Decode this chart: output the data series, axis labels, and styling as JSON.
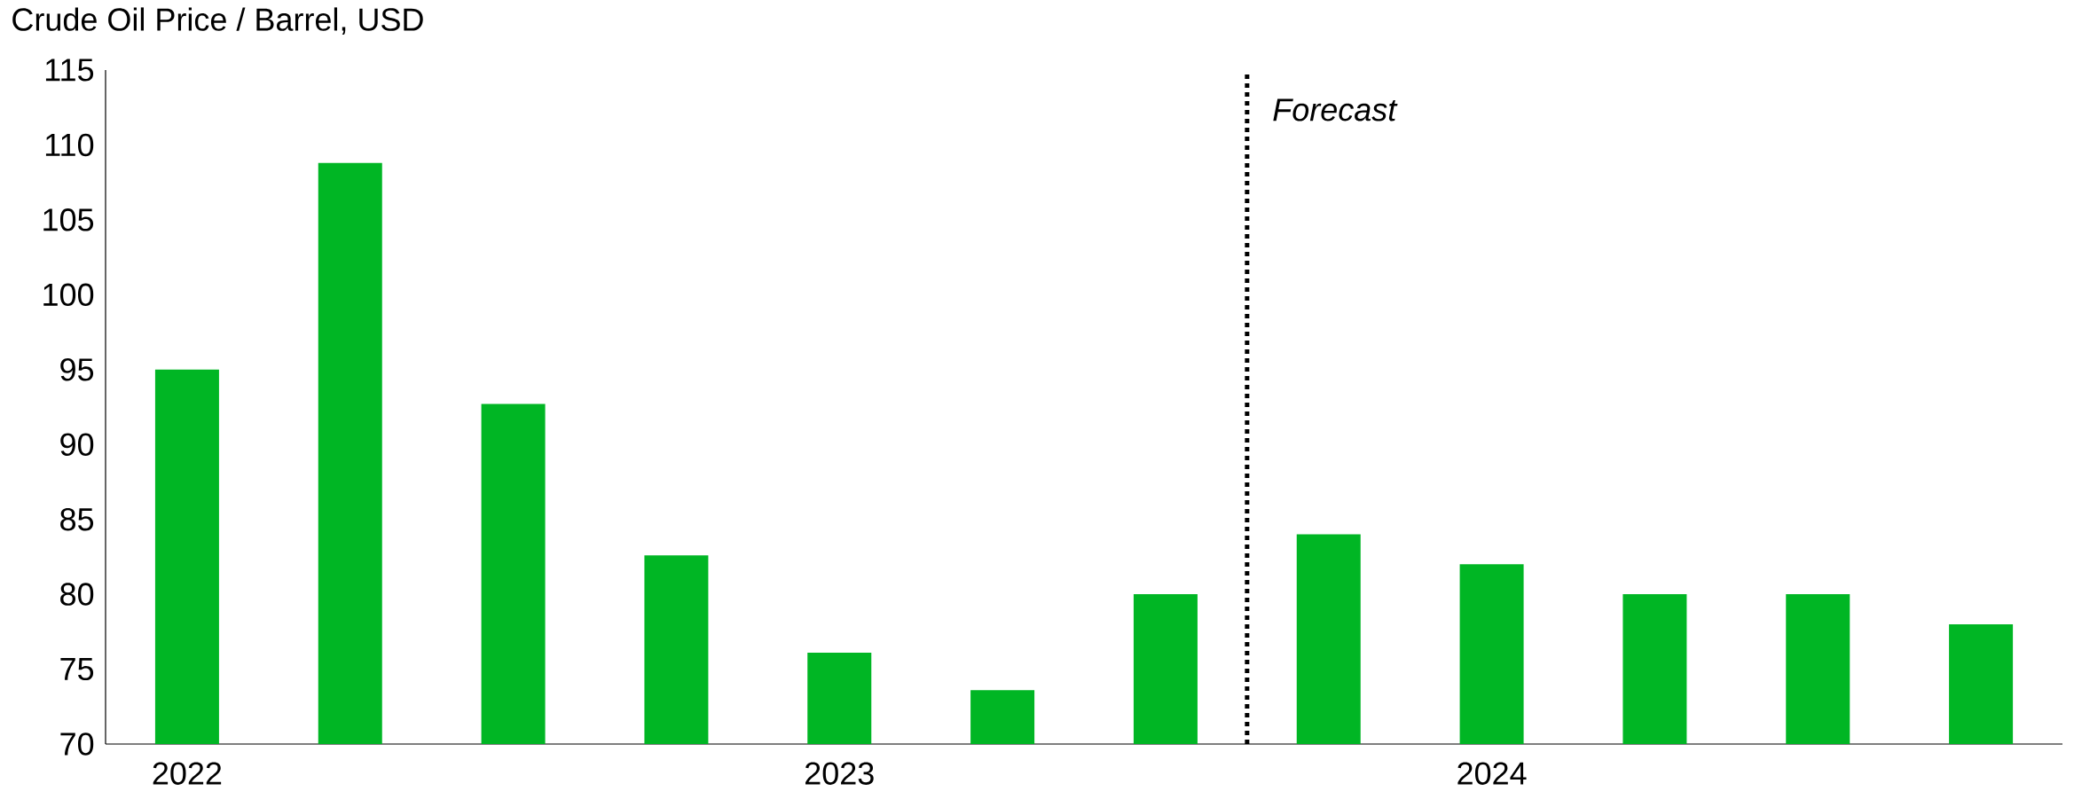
{
  "chart_data": {
    "type": "bar",
    "ylabel": "Crude Oil Price / Barrel, USD",
    "categories": [
      "2022",
      null,
      null,
      null,
      "2023",
      null,
      null,
      null,
      "2024",
      null,
      null,
      null
    ],
    "values": [
      95,
      108.8,
      92.7,
      82.6,
      76.1,
      73.6,
      80,
      84,
      82,
      80,
      80,
      78
    ],
    "color": "#00b624",
    "ylim": [
      70,
      115
    ],
    "yticks": [
      70,
      75,
      80,
      85,
      90,
      95,
      100,
      105,
      110,
      115
    ],
    "annotations": [
      "Forecast"
    ],
    "grid": false
  }
}
